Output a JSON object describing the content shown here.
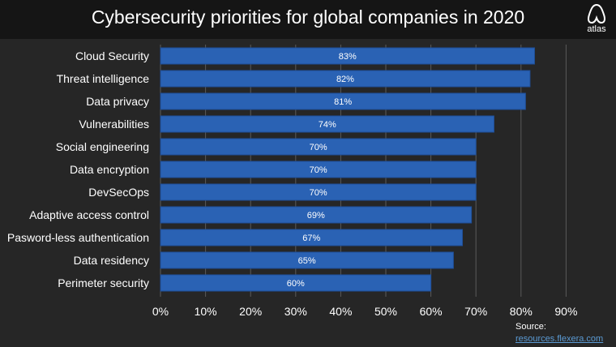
{
  "header": {
    "title": "Cybersecurity priorities for global companies in 2020",
    "logo_text": "atlas"
  },
  "source": {
    "label": "Source:",
    "link": "resources.flexera.com"
  },
  "colors": {
    "bar": "#2a62b4",
    "bar_edge": "#1f4f99",
    "grid": "#5a5a5a",
    "background": "#262626",
    "title_bar": "#151515"
  },
  "chart_data": {
    "type": "bar",
    "orientation": "horizontal",
    "title": "Cybersecurity priorities for global companies in 2020",
    "categories": [
      "Cloud Security",
      "Threat intelligence",
      "Data privacy",
      "Vulnerabilities",
      "Social engineering",
      "Data encryption",
      "DevSecOps",
      "Adaptive access control",
      "Pasword-less authentication",
      "Data residency",
      "Perimeter security"
    ],
    "values": [
      83,
      82,
      81,
      74,
      70,
      70,
      70,
      69,
      67,
      65,
      60
    ],
    "data_labels": [
      "83%",
      "82%",
      "81%",
      "74%",
      "70%",
      "70%",
      "70%",
      "69%",
      "67%",
      "65%",
      "60%"
    ],
    "xlim": [
      0,
      90
    ],
    "x_ticks": [
      0,
      10,
      20,
      30,
      40,
      50,
      60,
      70,
      80,
      90
    ],
    "x_tick_labels": [
      "0%",
      "10%",
      "20%",
      "30%",
      "40%",
      "50%",
      "60%",
      "70%",
      "80%",
      "90%"
    ],
    "xlabel": "",
    "ylabel": "",
    "grid": "vertical"
  }
}
